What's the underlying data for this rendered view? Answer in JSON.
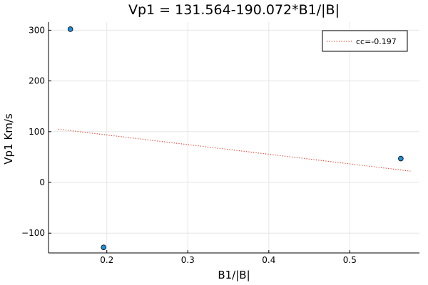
{
  "chart_data": {
    "type": "scatter",
    "title": "Vp1 = 131.564-190.072*B1/|B|",
    "xlabel": "B1/|B|",
    "ylabel": "Vp1 Km/s",
    "xlim": [
      0.128,
      0.586
    ],
    "ylim": [
      -139,
      316
    ],
    "xticks": [
      0.2,
      0.3,
      0.4,
      0.5
    ],
    "xtick_labels": [
      "0.2",
      "0.3",
      "0.4",
      "0.5"
    ],
    "yticks": [
      -100,
      0,
      100,
      200,
      300
    ],
    "ytick_labels": [
      "−100",
      "0",
      "100",
      "200",
      "300"
    ],
    "grid": true,
    "legend_position": "top-right",
    "series": [
      {
        "kind": "points",
        "x": [
          0.155,
          0.196,
          0.563
        ],
        "y": [
          302,
          -128,
          47
        ],
        "color": "#1f8fdc"
      },
      {
        "kind": "fit-line",
        "name": "cc=-0.197",
        "x": [
          0.14,
          0.575
        ],
        "y": [
          104.95,
          22.27
        ],
        "color": "#e8412f",
        "style": "dotted"
      }
    ]
  }
}
